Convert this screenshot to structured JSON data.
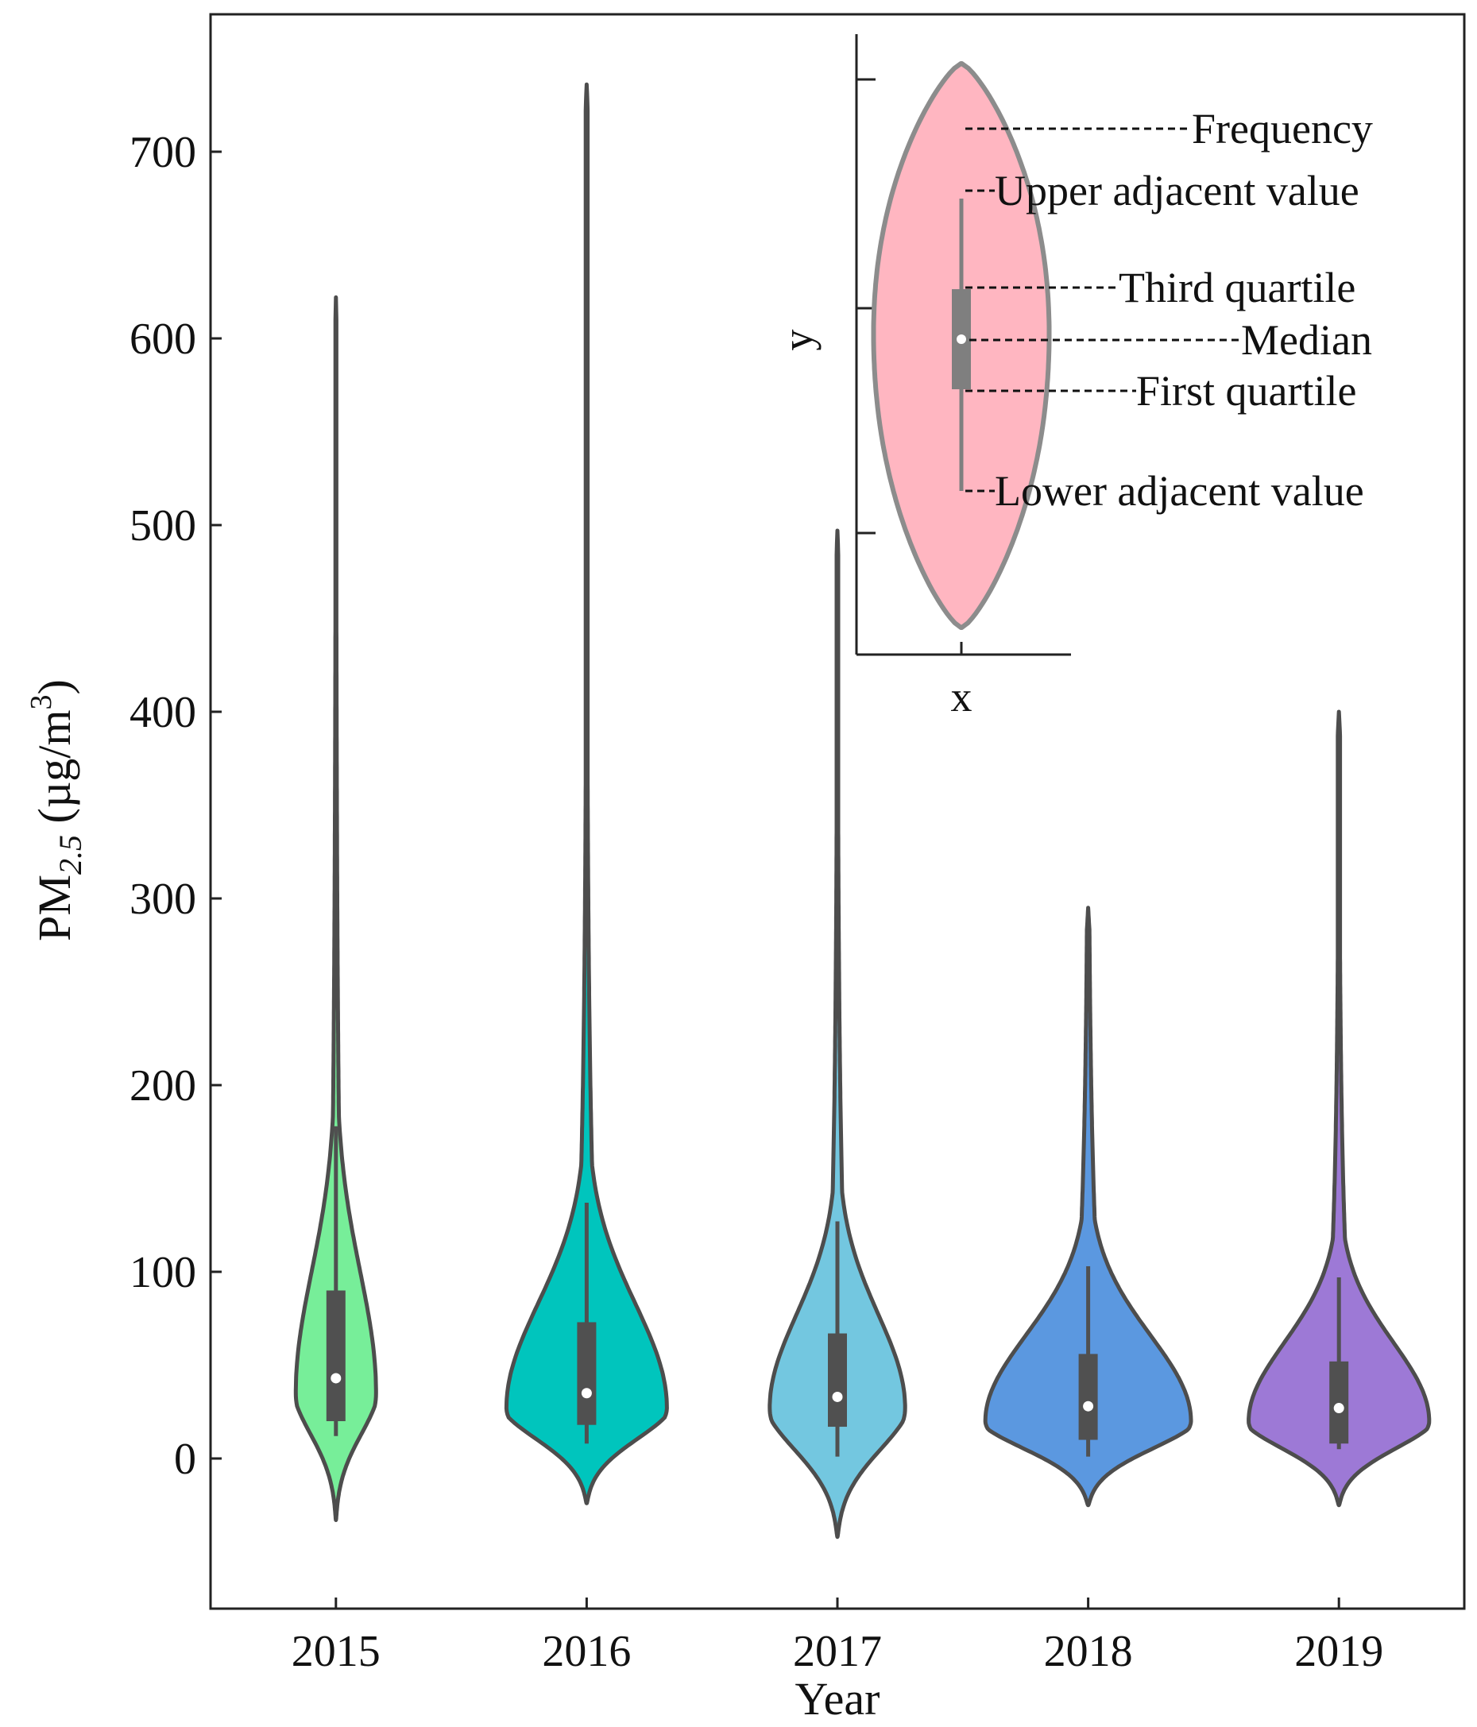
{
  "colors": {
    "frame": "#222222",
    "stroke": "#4d4d4d",
    "box": "#505050",
    "median_dot": "#ffffff",
    "inset_fill": "#ffb6c1",
    "inset_stroke": "#8c8c8c",
    "inset_box": "#7f7f7f"
  },
  "chart_data": {
    "type": "violin",
    "title": "",
    "xlabel": "Year",
    "ylabel": {
      "base": "PM",
      "subscript": "2.5",
      "units_prefix": " (µg/m",
      "superscript": "3",
      "units_suffix": ")"
    },
    "ylim": [
      -80,
      770
    ],
    "yticks": [
      0,
      100,
      200,
      300,
      400,
      500,
      600,
      700
    ],
    "categories": [
      "2015",
      "2016",
      "2017",
      "2018",
      "2019"
    ],
    "series": [
      {
        "name": "2015",
        "color": "#77ee99",
        "min": -33,
        "max": 622,
        "q1": 20,
        "median": 43,
        "q3": 90,
        "lower_adjacent": 12,
        "upper_adjacent": 178,
        "mode": 35,
        "max_half_width": 0.16
      },
      {
        "name": "2016",
        "color": "#00c5bd",
        "min": -24,
        "max": 736,
        "q1": 18,
        "median": 35,
        "q3": 73,
        "lower_adjacent": 8,
        "upper_adjacent": 137,
        "mode": 27,
        "max_half_width": 0.32
      },
      {
        "name": "2017",
        "color": "#73c7e0",
        "min": -42,
        "max": 497,
        "q1": 17,
        "median": 33,
        "q3": 67,
        "lower_adjacent": 1,
        "upper_adjacent": 127,
        "mode": 27,
        "max_half_width": 0.27
      },
      {
        "name": "2018",
        "color": "#5b98e0",
        "min": -25,
        "max": 295,
        "q1": 10,
        "median": 28,
        "q3": 56,
        "lower_adjacent": 1,
        "upper_adjacent": 103,
        "mode": 20,
        "max_half_width": 0.41
      },
      {
        "name": "2019",
        "color": "#9d79d6",
        "min": -25,
        "max": 400,
        "q1": 8,
        "median": 27,
        "q3": 52,
        "lower_adjacent": 5,
        "upper_adjacent": 97,
        "mode": 20,
        "max_half_width": 0.36
      }
    ],
    "inset": {
      "xlabel": "x",
      "ylabel": "y",
      "annotations": [
        "Frequency",
        "Upper adjacent value",
        "Third quartile",
        "Median",
        "First quartile",
        "Lower adjacent value"
      ]
    }
  }
}
